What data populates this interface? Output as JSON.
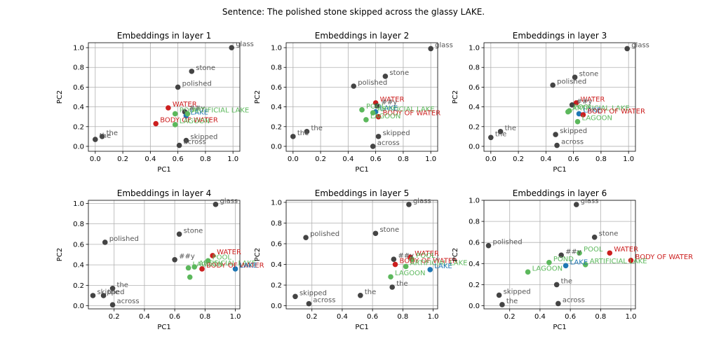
{
  "suptitle": "Sentence: The polished stone skipped across the glassy LAKE.",
  "colors": {
    "other": "#444444",
    "target": "#1f77b4",
    "related": "#5cb85c",
    "distractor": "#cc1f1f",
    "grid": "#b0b0b0"
  },
  "chart_data": [
    {
      "type": "scatter",
      "title": "Embeddings in layer 1",
      "xlabel": "PC1",
      "ylabel": "PC2",
      "xlim": [
        -0.05,
        1.05
      ],
      "ylim": [
        -0.05,
        1.05
      ],
      "xticks": [
        "0.0",
        "0.2",
        "0.4",
        "0.6",
        "0.8",
        "1.0"
      ],
      "yticks": [
        "0.0",
        "0.2",
        "0.4",
        "0.6",
        "0.8",
        "1.0"
      ],
      "grid": true,
      "points": [
        {
          "label": "glass",
          "x": 0.99,
          "y": 1.0,
          "group": "other"
        },
        {
          "label": "stone",
          "x": 0.7,
          "y": 0.76,
          "group": "other"
        },
        {
          "label": "polished",
          "x": 0.6,
          "y": 0.6,
          "group": "other"
        },
        {
          "label": "WATER",
          "x": 0.53,
          "y": 0.39,
          "group": "distractor"
        },
        {
          "label": "POOL",
          "x": 0.58,
          "y": 0.33,
          "group": "related"
        },
        {
          "label": "##y",
          "x": 0.65,
          "y": 0.35,
          "group": "other"
        },
        {
          "label": "LAKE",
          "x": 0.66,
          "y": 0.31,
          "group": "target"
        },
        {
          "label": "ARTIFICIAL LAKE",
          "x": 0.67,
          "y": 0.33,
          "group": "related"
        },
        {
          "label": "BODY OF WATER",
          "x": 0.44,
          "y": 0.23,
          "group": "distractor"
        },
        {
          "label": "LAGOON",
          "x": 0.58,
          "y": 0.22,
          "group": "related"
        },
        {
          "label": "the",
          "x": 0.05,
          "y": 0.1,
          "group": "other"
        },
        {
          "label": "the",
          "x": 0.0,
          "y": 0.07,
          "group": "other"
        },
        {
          "label": "skipped",
          "x": 0.66,
          "y": 0.06,
          "group": "other"
        },
        {
          "label": "across",
          "x": 0.61,
          "y": 0.01,
          "group": "other"
        }
      ]
    },
    {
      "type": "scatter",
      "title": "Embeddings in layer 2",
      "xlabel": "PC1",
      "ylabel": "PC2",
      "xlim": [
        -0.05,
        1.05
      ],
      "ylim": [
        -0.05,
        1.05
      ],
      "xticks": [
        "0.0",
        "0.2",
        "0.4",
        "0.6",
        "0.8",
        "1.0"
      ],
      "yticks": [
        "0.0",
        "0.2",
        "0.4",
        "0.6",
        "0.8",
        "1.0"
      ],
      "grid": true,
      "points": [
        {
          "label": "glass",
          "x": 1.0,
          "y": 0.99,
          "group": "other"
        },
        {
          "label": "stone",
          "x": 0.67,
          "y": 0.71,
          "group": "other"
        },
        {
          "label": "polished",
          "x": 0.44,
          "y": 0.61,
          "group": "other"
        },
        {
          "label": "WATER",
          "x": 0.6,
          "y": 0.44,
          "group": "distractor"
        },
        {
          "label": "POOL",
          "x": 0.5,
          "y": 0.37,
          "group": "related"
        },
        {
          "label": "##y",
          "x": 0.61,
          "y": 0.41,
          "group": "other"
        },
        {
          "label": "LAKE",
          "x": 0.6,
          "y": 0.35,
          "group": "target"
        },
        {
          "label": "ARTIFICIAL LAKE",
          "x": 0.58,
          "y": 0.34,
          "group": "related"
        },
        {
          "label": "BODY OF WATER",
          "x": 0.62,
          "y": 0.3,
          "group": "distractor"
        },
        {
          "label": "LAGOON",
          "x": 0.53,
          "y": 0.27,
          "group": "related"
        },
        {
          "label": "the",
          "x": 0.1,
          "y": 0.15,
          "group": "other"
        },
        {
          "label": "the",
          "x": 0.0,
          "y": 0.1,
          "group": "other"
        },
        {
          "label": "skipped",
          "x": 0.62,
          "y": 0.1,
          "group": "other"
        },
        {
          "label": "across",
          "x": 0.58,
          "y": 0.0,
          "group": "other"
        }
      ]
    },
    {
      "type": "scatter",
      "title": "Embeddings in layer 3",
      "xlabel": "PC1",
      "ylabel": "PC2",
      "xlim": [
        -0.05,
        1.05
      ],
      "ylim": [
        -0.05,
        1.05
      ],
      "xticks": [
        "0.0",
        "0.2",
        "0.4",
        "0.6",
        "0.8",
        "1.0"
      ],
      "yticks": [
        "0.0",
        "0.2",
        "0.4",
        "0.6",
        "0.8",
        "1.0"
      ],
      "grid": true,
      "points": [
        {
          "label": "glass",
          "x": 0.99,
          "y": 0.99,
          "group": "other"
        },
        {
          "label": "stone",
          "x": 0.61,
          "y": 0.7,
          "group": "other"
        },
        {
          "label": "polished",
          "x": 0.45,
          "y": 0.62,
          "group": "other"
        },
        {
          "label": "WATER",
          "x": 0.62,
          "y": 0.44,
          "group": "distractor"
        },
        {
          "label": "##y",
          "x": 0.59,
          "y": 0.42,
          "group": "other"
        },
        {
          "label": "POOL",
          "x": 0.57,
          "y": 0.36,
          "group": "related"
        },
        {
          "label": "ARTIFICIAL LAKE",
          "x": 0.56,
          "y": 0.35,
          "group": "related"
        },
        {
          "label": "LAKE",
          "x": 0.64,
          "y": 0.33,
          "group": "target"
        },
        {
          "label": "BODY OF WATER",
          "x": 0.67,
          "y": 0.32,
          "group": "distractor"
        },
        {
          "label": "LAGOON",
          "x": 0.63,
          "y": 0.25,
          "group": "related"
        },
        {
          "label": "the",
          "x": 0.07,
          "y": 0.15,
          "group": "other"
        },
        {
          "label": "the",
          "x": 0.0,
          "y": 0.09,
          "group": "other"
        },
        {
          "label": "skipped",
          "x": 0.47,
          "y": 0.12,
          "group": "other"
        },
        {
          "label": "across",
          "x": 0.48,
          "y": 0.01,
          "group": "other"
        }
      ]
    },
    {
      "type": "scatter",
      "title": "Embeddings in layer 4",
      "xlabel": "PC1",
      "ylabel": "PC2",
      "xlim": [
        0.03,
        1.03
      ],
      "ylim": [
        -0.03,
        1.03
      ],
      "xticks": [
        "0.2",
        "0.4",
        "0.6",
        "0.8",
        "1.0"
      ],
      "yticks": [
        "0.0",
        "0.2",
        "0.4",
        "0.6",
        "0.8",
        "1.0"
      ],
      "grid": true,
      "points": [
        {
          "label": "glass",
          "x": 0.87,
          "y": 0.99,
          "group": "other"
        },
        {
          "label": "stone",
          "x": 0.63,
          "y": 0.7,
          "group": "other"
        },
        {
          "label": "polished",
          "x": 0.14,
          "y": 0.62,
          "group": "other"
        },
        {
          "label": "WATER",
          "x": 0.85,
          "y": 0.49,
          "group": "distractor"
        },
        {
          "label": "##y",
          "x": 0.6,
          "y": 0.45,
          "group": "other"
        },
        {
          "label": "POOL",
          "x": 0.82,
          "y": 0.44,
          "group": "related"
        },
        {
          "label": "ARTIFICIAL LAKE",
          "x": 0.73,
          "y": 0.38,
          "group": "related"
        },
        {
          "label": "BODY OF WATER",
          "x": 0.78,
          "y": 0.36,
          "group": "distractor"
        },
        {
          "label": "LAKE",
          "x": 1.0,
          "y": 0.36,
          "group": "target"
        },
        {
          "label": "LAGOON",
          "x": 0.69,
          "y": 0.37,
          "group": "related"
        },
        {
          "label": "",
          "x": 0.7,
          "y": 0.28,
          "group": "related"
        },
        {
          "label": "the",
          "x": 0.19,
          "y": 0.17,
          "group": "other"
        },
        {
          "label": "skipped",
          "x": 0.06,
          "y": 0.1,
          "group": "other"
        },
        {
          "label": "the",
          "x": 0.13,
          "y": 0.1,
          "group": "other"
        },
        {
          "label": "across",
          "x": 0.19,
          "y": 0.01,
          "group": "other"
        }
      ]
    },
    {
      "type": "scatter",
      "title": "Embeddings in layer 5",
      "xlabel": "PC1",
      "ylabel": "PC2",
      "xlim": [
        0.03,
        1.03
      ],
      "ylim": [
        -0.03,
        1.02
      ],
      "xticks": [
        "0.2",
        "0.4",
        "0.6",
        "0.8",
        "1.0"
      ],
      "yticks": [
        "0.0",
        "0.2",
        "0.4",
        "0.6",
        "0.8",
        "1.0"
      ],
      "grid": true,
      "points": [
        {
          "label": "glass",
          "x": 0.84,
          "y": 0.98,
          "group": "other"
        },
        {
          "label": "stone",
          "x": 0.62,
          "y": 0.7,
          "group": "other"
        },
        {
          "label": "polished",
          "x": 0.16,
          "y": 0.66,
          "group": "other"
        },
        {
          "label": "WATER",
          "x": 0.85,
          "y": 0.47,
          "group": "distractor"
        },
        {
          "label": "##y",
          "x": 0.74,
          "y": 0.45,
          "group": "other"
        },
        {
          "label": "POOL",
          "x": 0.86,
          "y": 0.45,
          "group": "related"
        },
        {
          "label": "BODY OF WATER",
          "x": 0.75,
          "y": 0.4,
          "group": "distractor"
        },
        {
          "label": "ARTIFICIAL LAKE",
          "x": 0.82,
          "y": 0.38,
          "group": "related"
        },
        {
          "label": "LAKE",
          "x": 0.98,
          "y": 0.35,
          "group": "target"
        },
        {
          "label": "LAGOON",
          "x": 0.72,
          "y": 0.28,
          "group": "related"
        },
        {
          "label": "the",
          "x": 0.73,
          "y": 0.18,
          "group": "other"
        },
        {
          "label": "the",
          "x": 0.52,
          "y": 0.1,
          "group": "other"
        },
        {
          "label": "skipped",
          "x": 0.09,
          "y": 0.09,
          "group": "other"
        },
        {
          "label": "across",
          "x": 0.18,
          "y": 0.02,
          "group": "other"
        }
      ]
    },
    {
      "type": "scatter",
      "title": "Embeddings in layer 6",
      "xlabel": "PC1",
      "ylabel": "PC2",
      "xlim": [
        0.03,
        1.03
      ],
      "ylim": [
        -0.03,
        1.0
      ],
      "xticks": [
        "0.2",
        "0.4",
        "0.6",
        "0.8",
        "1.0"
      ],
      "yticks": [
        "0.0",
        "0.2",
        "0.4",
        "0.6",
        "0.8",
        "1.0"
      ],
      "grid": true,
      "points": [
        {
          "label": "glass",
          "x": 0.64,
          "y": 0.96,
          "group": "other"
        },
        {
          "label": "stone",
          "x": 0.76,
          "y": 0.65,
          "group": "other"
        },
        {
          "label": "polished",
          "x": 0.06,
          "y": 0.57,
          "group": "other"
        },
        {
          "label": "WATER",
          "x": 0.86,
          "y": 0.5,
          "group": "distractor"
        },
        {
          "label": "BODY OF WATER",
          "x": 1.0,
          "y": 0.43,
          "group": "distractor"
        },
        {
          "label": "##y",
          "x": 0.54,
          "y": 0.48,
          "group": "other"
        },
        {
          "label": "POOL",
          "x": 0.66,
          "y": 0.5,
          "group": "related"
        },
        {
          "label": "POND",
          "x": 0.46,
          "y": 0.41,
          "group": "related"
        },
        {
          "label": "LAKE",
          "x": 0.57,
          "y": 0.38,
          "group": "target"
        },
        {
          "label": "ARTIFICIAL LAKE",
          "x": 0.7,
          "y": 0.39,
          "group": "related"
        },
        {
          "label": "LAGOON",
          "x": 0.32,
          "y": 0.32,
          "group": "related"
        },
        {
          "label": "the",
          "x": 0.51,
          "y": 0.2,
          "group": "other"
        },
        {
          "label": "skipped",
          "x": 0.13,
          "y": 0.1,
          "group": "other"
        },
        {
          "label": "the",
          "x": 0.15,
          "y": 0.01,
          "group": "other"
        },
        {
          "label": "across",
          "x": 0.52,
          "y": 0.02,
          "group": "other"
        }
      ]
    }
  ]
}
